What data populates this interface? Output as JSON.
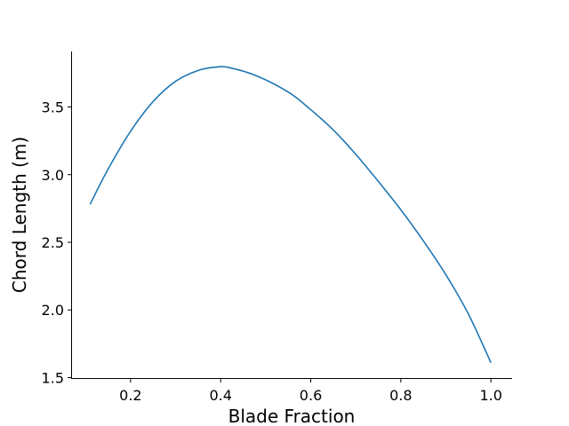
{
  "chart_data": {
    "type": "line",
    "title": "",
    "xlabel": "Blade Fraction",
    "ylabel": "Chord Length (m)",
    "xlim": [
      0.068,
      1.047
    ],
    "ylim": [
      1.49,
      3.91
    ],
    "xticks": [
      0.2,
      0.4,
      0.6,
      0.8,
      1.0
    ],
    "xtick_labels": [
      "0.2",
      "0.4",
      "0.6",
      "0.8",
      "1.0"
    ],
    "yticks": [
      1.5,
      2.0,
      2.5,
      3.0,
      3.5
    ],
    "ytick_labels": [
      "1.5",
      "2.0",
      "2.5",
      "3.0",
      "3.5"
    ],
    "grid": false,
    "spines": "left-bottom",
    "series": [
      {
        "color": "#1f77b4",
        "x": [
          0.11,
          0.15,
          0.2,
          0.25,
          0.3,
          0.35,
          0.39,
          0.42,
          0.48,
          0.55,
          0.6,
          0.65,
          0.7,
          0.75,
          0.8,
          0.85,
          0.9,
          0.95,
          1.0
        ],
        "y": [
          2.78,
          3.04,
          3.32,
          3.54,
          3.69,
          3.77,
          3.795,
          3.79,
          3.73,
          3.61,
          3.48,
          3.33,
          3.15,
          2.95,
          2.74,
          2.51,
          2.26,
          1.97,
          1.61
        ]
      }
    ]
  }
}
